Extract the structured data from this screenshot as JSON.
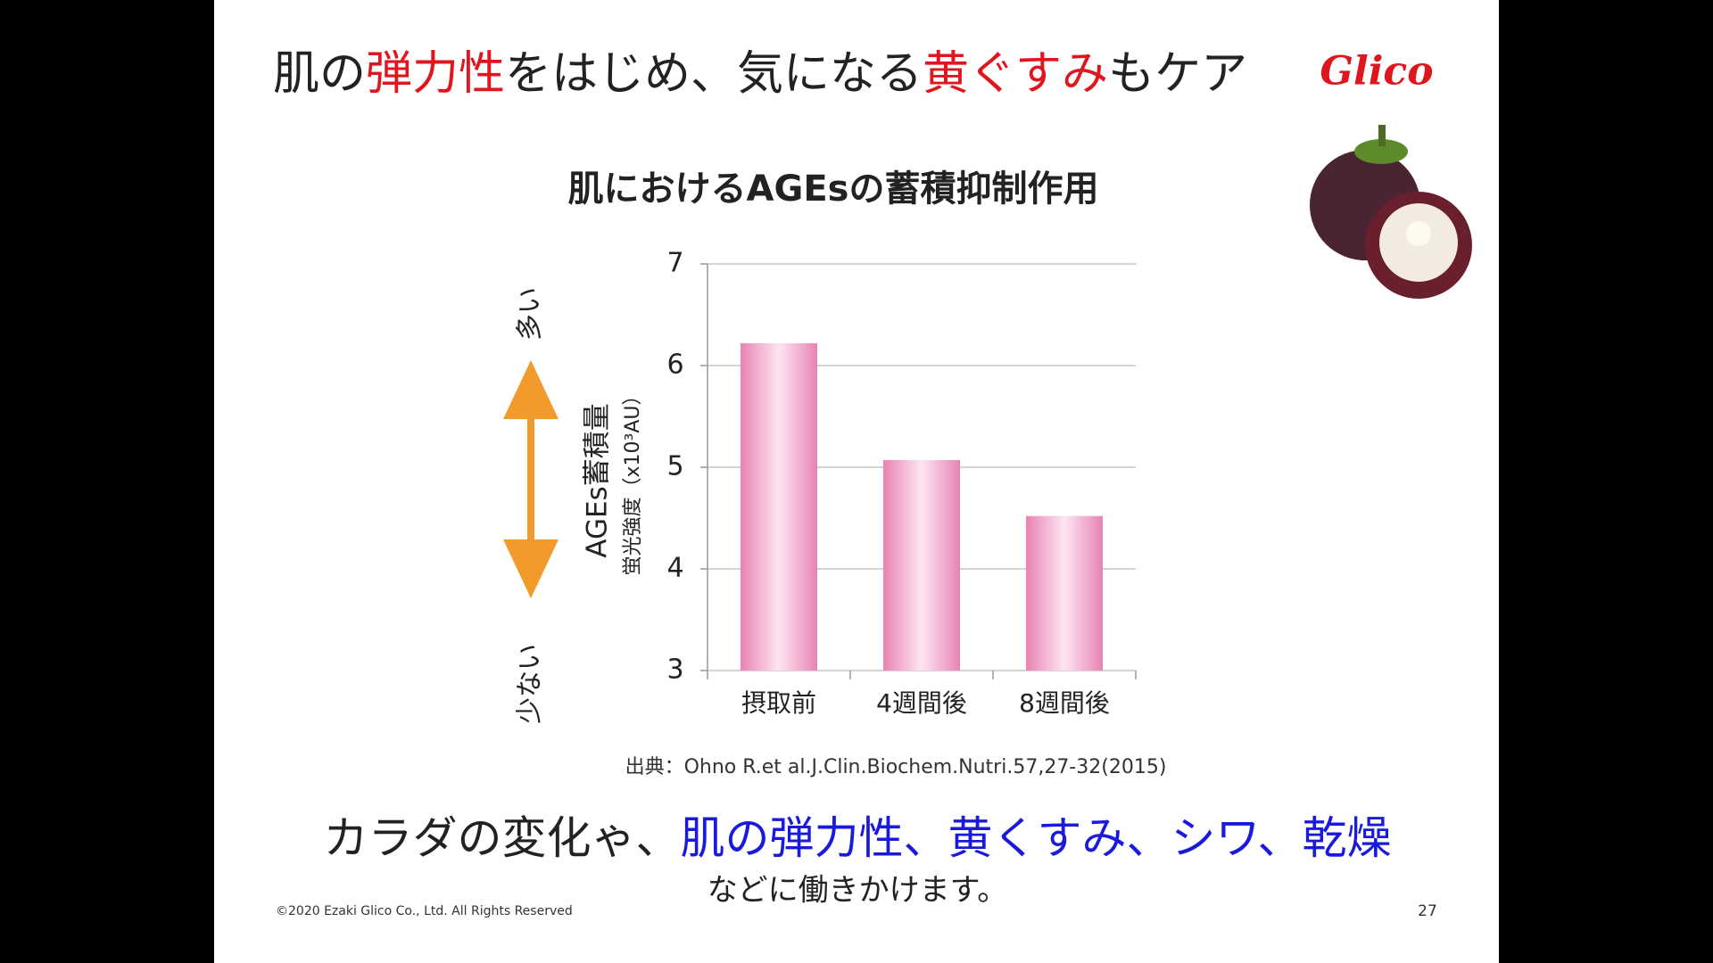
{
  "slide": {
    "title": [
      {
        "text": "肌の",
        "color": "#222222"
      },
      {
        "text": "弾力性",
        "color": "#e0161e"
      },
      {
        "text": "をはじめ、気になる",
        "color": "#222222"
      },
      {
        "text": "黄ぐすみ",
        "color": "#e0161e"
      },
      {
        "text": "もケア",
        "color": "#222222"
      }
    ],
    "logo": "Glico",
    "message": [
      {
        "text": "カラダの変化ゃ、",
        "color": "#222222"
      },
      {
        "text": "肌の弾力性、黄くすみ、シワ、乾燥",
        "color": "#1a1adc"
      }
    ],
    "message_sub": "などに働きかけます。",
    "copyright": "©2020 Ezaki Glico Co., Ltd. All Rights Reserved",
    "page_number": "27"
  },
  "chart_data": {
    "type": "bar",
    "title": "肌におけるAGEsの蓄積抑制作用",
    "y_label": "AGEs蓄積量",
    "y_sublabel": "蛍光強度（x10³AU）",
    "arrow_top": "多い",
    "arrow_bottom": "少ない",
    "source": "出典：Ohno R.et al.J.Clin.Biochem.Nutri.57,27-32(2015)",
    "categories": [
      "摂取前",
      "4週間後",
      "8週間後"
    ],
    "values": [
      6.22,
      5.07,
      4.52
    ],
    "color": "#e882b4",
    "ylim": [
      3,
      7
    ],
    "yticks": [
      3,
      4,
      5,
      6,
      7
    ],
    "grid": true
  }
}
